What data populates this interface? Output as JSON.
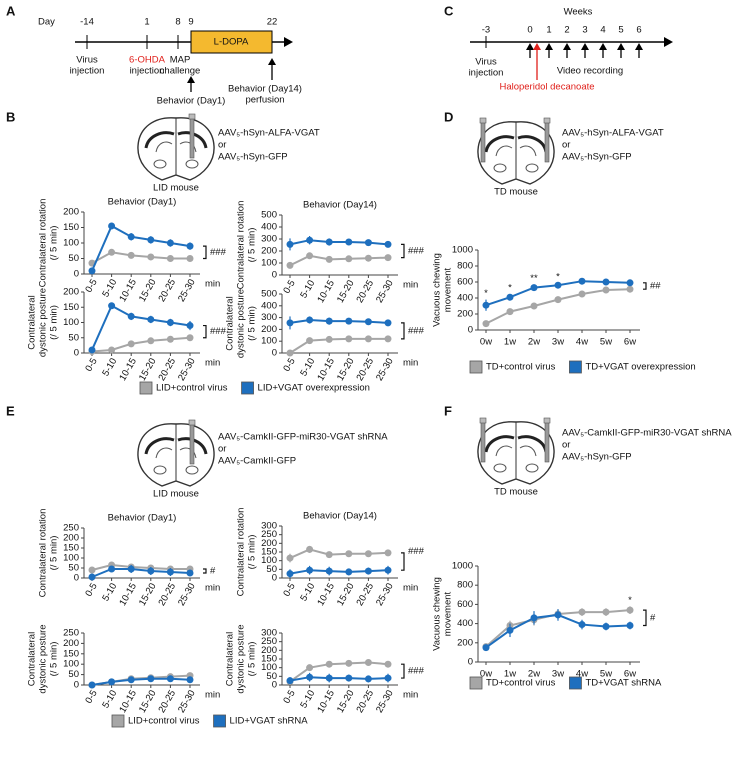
{
  "panel_a": {
    "letter": "A",
    "axis_label": "Day",
    "days": [
      "-14",
      "1",
      "8",
      "9",
      "22"
    ],
    "treatment": "L-DOPA",
    "events": [
      [
        "Virus",
        "injection"
      ],
      [
        "6-OHDA",
        "injection"
      ],
      [
        "MAP",
        "challenge"
      ],
      [
        "Behavior (Day1)"
      ],
      [
        "Behavior (Day14)",
        "perfusion"
      ]
    ]
  },
  "panel_b": {
    "letter": "B",
    "construct": [
      "AAV₅-hSyn-ALFA-VGAT",
      "or",
      "AAV₅-hSyn-GFP"
    ],
    "model": "LID mouse"
  },
  "panel_c": {
    "letter": "C",
    "axis_label": "Weeks",
    "weeks": [
      "-3",
      "0",
      "1",
      "2",
      "3",
      "4",
      "5",
      "6"
    ],
    "events": [
      [
        "Virus",
        "injection"
      ],
      [
        "Video recording"
      ],
      [
        "Haloperidol decanoate"
      ]
    ]
  },
  "panel_d": {
    "letter": "D",
    "construct": [
      "AAV₅-hSyn-ALFA-VGAT",
      "or",
      "AAV₅-hSyn-GFP"
    ],
    "model": "TD mouse"
  },
  "panel_e": {
    "letter": "E",
    "construct": [
      "AAV₅-CamkII-GFP-miR30-VGAT shRNA",
      "or",
      "AAV₅-CamkII-GFP"
    ],
    "model": "LID mouse"
  },
  "panel_f": {
    "letter": "F",
    "construct": [
      "AAV₅-CamkII-GFP-miR30-VGAT shRNA",
      "or",
      "AAV₅-hSyn-GFP"
    ],
    "model": "TD mouse"
  },
  "chart_data": [
    {
      "type": "line",
      "title": "Behavior (Day1)",
      "y_label": [
        "Contralateral rotation",
        "(/ 5 min)"
      ],
      "categories": [
        "0-5",
        "5-10",
        "10-15",
        "15-20",
        "20-25",
        "25-30"
      ],
      "x_unit": "min",
      "ylim": [
        0,
        200
      ],
      "yticks": [
        0,
        50,
        100,
        150,
        200
      ],
      "significance": "###",
      "series": [
        {
          "name": "LID+control virus",
          "color": "#a6a6a6",
          "values": [
            35,
            70,
            60,
            55,
            50,
            50
          ],
          "errors": [
            8,
            8,
            6,
            6,
            5,
            5
          ]
        },
        {
          "name": "LID+VGAT overexpression",
          "color": "#1e6fbe",
          "values": [
            10,
            155,
            120,
            110,
            100,
            90
          ],
          "errors": [
            8,
            10,
            12,
            12,
            12,
            12
          ]
        }
      ]
    },
    {
      "type": "line",
      "title": "Behavior (Day14)",
      "y_label": [
        "Contralateral rotation",
        "(/ 5 min)"
      ],
      "categories": [
        "0-5",
        "5-10",
        "10-15",
        "15-20",
        "20-25",
        "25-30"
      ],
      "x_unit": "min",
      "ylim": [
        0,
        500
      ],
      "yticks": [
        0,
        100,
        200,
        300,
        400,
        500
      ],
      "significance": "###",
      "series": [
        {
          "color": "#a6a6a6",
          "values": [
            80,
            160,
            130,
            135,
            140,
            145
          ],
          "errors": [
            20,
            25,
            15,
            15,
            15,
            12
          ]
        },
        {
          "color": "#1e6fbe",
          "values": [
            255,
            290,
            275,
            275,
            270,
            255
          ],
          "errors": [
            50,
            35,
            30,
            25,
            25,
            15
          ]
        }
      ]
    },
    {
      "type": "line",
      "y_label": [
        "Contralateral",
        "dystonic posture",
        "(/ 5 min)"
      ],
      "categories": [
        "0-5",
        "5-10",
        "10-15",
        "15-20",
        "20-25",
        "25-30"
      ],
      "x_unit": "min",
      "ylim": [
        0,
        200
      ],
      "yticks": [
        0,
        50,
        100,
        150,
        200
      ],
      "significance": "###",
      "series": [
        {
          "color": "#a6a6a6",
          "values": [
            5,
            10,
            30,
            40,
            45,
            50
          ],
          "errors": [
            3,
            5,
            8,
            8,
            8,
            8
          ]
        },
        {
          "color": "#1e6fbe",
          "values": [
            10,
            155,
            120,
            110,
            100,
            90
          ],
          "errors": [
            5,
            8,
            12,
            12,
            12,
            15
          ]
        }
      ]
    },
    {
      "type": "line",
      "y_label": [
        "Contralateral",
        "dystonic posture",
        "(/ 5 min)"
      ],
      "categories": [
        "0-5",
        "5-10",
        "10-15",
        "15-20",
        "20-25",
        "25-30"
      ],
      "x_unit": "min",
      "ylim": [
        0,
        500
      ],
      "yticks": [
        0,
        100,
        200,
        300,
        400,
        500
      ],
      "significance": "###",
      "series": [
        {
          "color": "#a6a6a6",
          "values": [
            0,
            105,
            115,
            120,
            120,
            120
          ],
          "errors": [
            5,
            15,
            15,
            15,
            15,
            12
          ]
        },
        {
          "color": "#1e6fbe",
          "values": [
            255,
            280,
            270,
            270,
            265,
            255
          ],
          "errors": [
            55,
            30,
            30,
            25,
            25,
            15
          ]
        }
      ]
    },
    {
      "type": "line",
      "y_label": [
        "Vacuous chewing",
        "movement"
      ],
      "categories": [
        "0w",
        "1w",
        "2w",
        "3w",
        "4w",
        "5w",
        "6w"
      ],
      "ylim": [
        0,
        1000
      ],
      "yticks": [
        0,
        200,
        400,
        600,
        800,
        1000
      ],
      "significance": "##",
      "stars": [
        "*",
        "*",
        "**",
        "*",
        null,
        null,
        null
      ],
      "series": [
        {
          "name": "TD+control virus",
          "color": "#a6a6a6",
          "values": [
            80,
            230,
            300,
            380,
            450,
            500,
            510
          ],
          "errors": [
            10,
            30,
            40,
            40,
            40,
            40,
            40
          ]
        },
        {
          "name": "TD+VGAT overexpression",
          "color": "#1e6fbe",
          "values": [
            310,
            410,
            530,
            560,
            610,
            600,
            590
          ],
          "errors": [
            70,
            40,
            40,
            30,
            40,
            40,
            40
          ]
        }
      ]
    },
    {
      "type": "line",
      "title": "Behavior (Day1)",
      "y_label": [
        "Contralateral rotation",
        "(/ 5 min)"
      ],
      "categories": [
        "0-5",
        "5-10",
        "10-15",
        "15-20",
        "20-25",
        "25-30"
      ],
      "x_unit": "min",
      "ylim": [
        0,
        250
      ],
      "yticks": [
        0,
        50,
        100,
        150,
        200,
        250
      ],
      "significance": "#",
      "series": [
        {
          "name": "LID+control virus",
          "color": "#a6a6a6",
          "values": [
            40,
            65,
            55,
            50,
            45,
            45
          ],
          "errors": [
            8,
            10,
            8,
            8,
            8,
            8
          ]
        },
        {
          "name": "LID+VGAT shRNA",
          "color": "#1e6fbe",
          "values": [
            5,
            45,
            45,
            35,
            30,
            25
          ],
          "errors": [
            3,
            15,
            20,
            20,
            20,
            15
          ]
        }
      ]
    },
    {
      "type": "line",
      "title": "Behavior (Day14)",
      "y_label": [
        "Contralateral rotation",
        "(/ 5 min)"
      ],
      "categories": [
        "0-5",
        "5-10",
        "10-15",
        "15-20",
        "20-25",
        "25-30"
      ],
      "x_unit": "min",
      "ylim": [
        0,
        300
      ],
      "yticks": [
        0,
        50,
        100,
        150,
        200,
        250,
        300
      ],
      "significance": "###",
      "series": [
        {
          "color": "#a6a6a6",
          "values": [
            115,
            165,
            135,
            140,
            140,
            145
          ],
          "errors": [
            25,
            20,
            15,
            12,
            10,
            10
          ]
        },
        {
          "color": "#1e6fbe",
          "values": [
            25,
            45,
            40,
            35,
            40,
            45
          ],
          "errors": [
            25,
            25,
            25,
            20,
            20,
            25
          ]
        }
      ]
    },
    {
      "type": "line",
      "y_label": [
        "Contralateral",
        "dystonic posture",
        "(/ 5 min)"
      ],
      "categories": [
        "0-5",
        "5-10",
        "10-15",
        "15-20",
        "20-25",
        "25-30"
      ],
      "x_unit": "min",
      "ylim": [
        0,
        250
      ],
      "yticks": [
        0,
        50,
        100,
        150,
        200,
        250
      ],
      "series": [
        {
          "color": "#a6a6a6",
          "values": [
            0,
            15,
            30,
            35,
            40,
            45
          ],
          "errors": [
            2,
            5,
            8,
            8,
            8,
            8
          ]
        },
        {
          "color": "#1e6fbe",
          "values": [
            0,
            15,
            25,
            30,
            30,
            25
          ],
          "errors": [
            2,
            8,
            12,
            12,
            12,
            12
          ]
        }
      ]
    },
    {
      "type": "line",
      "y_label": [
        "Contralateral",
        "dystonic posture",
        "(/ 5 min)"
      ],
      "categories": [
        "0-5",
        "5-10",
        "10-15",
        "15-20",
        "20-25",
        "25-30"
      ],
      "x_unit": "min",
      "ylim": [
        0,
        300
      ],
      "yticks": [
        0,
        50,
        100,
        150,
        200,
        250,
        300
      ],
      "significance": "###",
      "series": [
        {
          "color": "#a6a6a6",
          "values": [
            20,
            100,
            120,
            125,
            130,
            120
          ],
          "errors": [
            10,
            15,
            15,
            12,
            10,
            10
          ]
        },
        {
          "color": "#1e6fbe",
          "values": [
            25,
            45,
            40,
            40,
            35,
            40
          ],
          "errors": [
            20,
            25,
            25,
            20,
            20,
            25
          ]
        }
      ]
    },
    {
      "type": "line",
      "y_label": [
        "Vacuous chewing",
        "movement"
      ],
      "categories": [
        "0w",
        "1w",
        "2w",
        "3w",
        "4w",
        "5w",
        "6w"
      ],
      "ylim": [
        0,
        1000
      ],
      "yticks": [
        0,
        200,
        400,
        600,
        800,
        1000
      ],
      "significance": "#",
      "stars": [
        null,
        null,
        null,
        null,
        null,
        null,
        "*"
      ],
      "series": [
        {
          "name": "TD+control virus",
          "color": "#a6a6a6",
          "values": [
            160,
            380,
            440,
            500,
            520,
            520,
            540
          ],
          "errors": [
            20,
            50,
            60,
            50,
            40,
            40,
            40
          ]
        },
        {
          "name": "TD+VGAT shRNA",
          "color": "#1e6fbe",
          "values": [
            150,
            330,
            460,
            490,
            390,
            370,
            380
          ],
          "errors": [
            20,
            70,
            70,
            60,
            50,
            40,
            40
          ]
        }
      ]
    }
  ]
}
